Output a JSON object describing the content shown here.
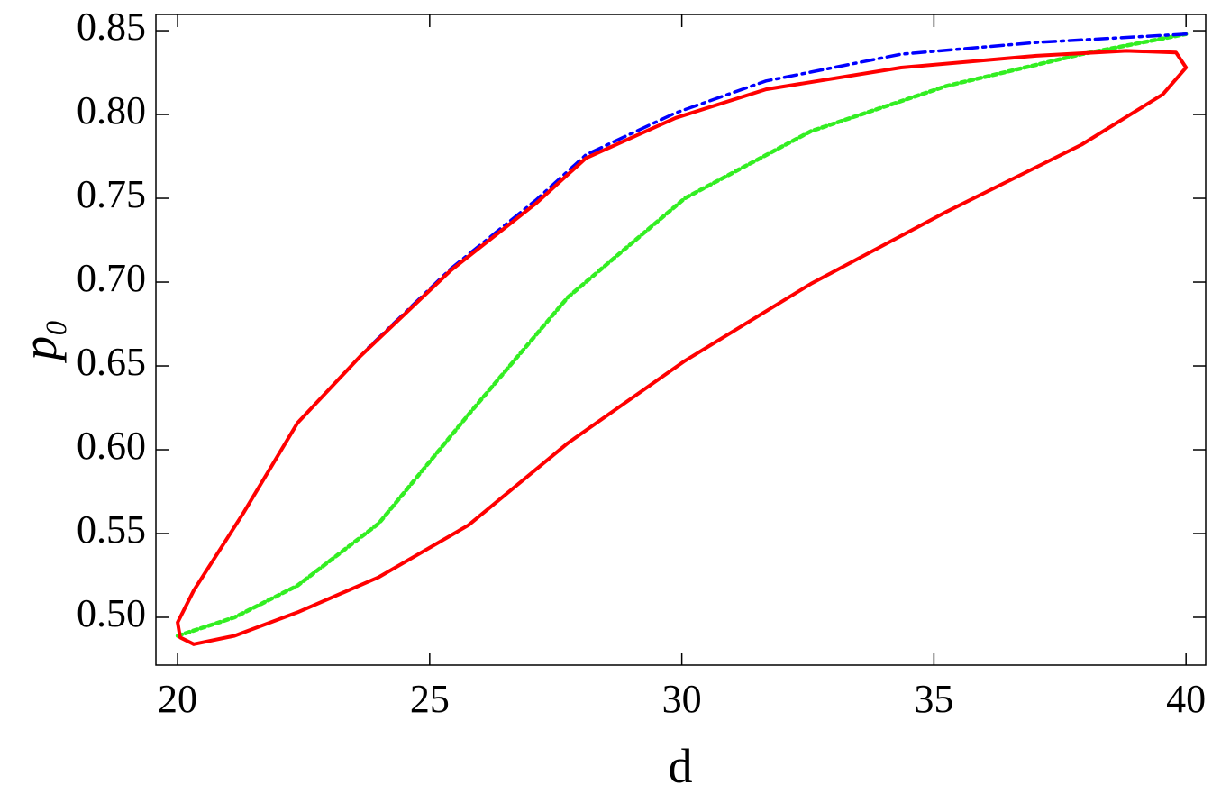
{
  "chart_data": {
    "type": "line",
    "x_label": "d",
    "y_label": "p₀",
    "xlim": [
      19.57,
      40.39
    ],
    "ylim": [
      0.4715,
      0.8597
    ],
    "xticks": [
      20,
      25,
      30,
      35,
      40
    ],
    "yticks": [
      {
        "value": 0.5,
        "label": "0.50"
      },
      {
        "value": 0.55,
        "label": "0.55"
      },
      {
        "value": 0.6,
        "label": "0.60"
      },
      {
        "value": 0.65,
        "label": "0.65"
      },
      {
        "value": 0.7,
        "label": "0.70"
      },
      {
        "value": 0.75,
        "label": "0.75"
      },
      {
        "value": 0.8,
        "label": "0.80"
      },
      {
        "value": 0.85,
        "label": "0.85"
      }
    ],
    "series": [
      {
        "color": "#ff0000",
        "dash": "solid",
        "x": [
          20.32,
          21.13,
          22.38,
          23.99,
          25.77,
          27.74,
          30.06,
          32.56,
          35.25,
          37.93,
          39.54,
          40.0,
          39.8,
          38.82,
          37.03,
          34.35,
          31.67,
          29.88,
          28.1,
          27.11,
          25.42,
          23.63,
          22.38,
          21.3,
          20.32,
          20.0,
          20.05,
          20.32
        ],
        "values": [
          0.484,
          0.489,
          0.503,
          0.524,
          0.555,
          0.604,
          0.653,
          0.699,
          0.742,
          0.782,
          0.812,
          0.828,
          0.837,
          0.838,
          0.835,
          0.828,
          0.815,
          0.798,
          0.774,
          0.747,
          0.707,
          0.656,
          0.616,
          0.562,
          0.516,
          0.497,
          0.488,
          0.484
        ]
      },
      {
        "color": "#0000ff",
        "dash": "dashdot",
        "x": [
          40.0,
          37.03,
          34.35,
          31.67,
          29.88,
          28.1,
          27.11,
          25.42,
          23.72
        ],
        "values": [
          0.848,
          0.843,
          0.836,
          0.82,
          0.801,
          0.776,
          0.749,
          0.708,
          0.659
        ]
      },
      {
        "color": "#33ee22",
        "dash": "dotted",
        "x": [
          20.0,
          21.13,
          22.38,
          23.99,
          25.77,
          27.74,
          30.06,
          32.56,
          35.25,
          37.93,
          40.0
        ],
        "values": [
          0.489,
          0.5,
          0.519,
          0.556,
          0.621,
          0.691,
          0.75,
          0.79,
          0.817,
          0.836,
          0.848
        ]
      }
    ]
  }
}
